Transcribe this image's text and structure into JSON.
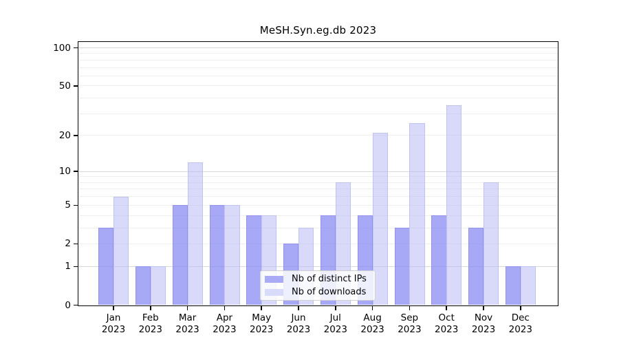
{
  "chart_data": {
    "type": "bar",
    "title": "MeSH.Syn.eg.db 2023",
    "categories": [
      "Jan",
      "Feb",
      "Mar",
      "Apr",
      "May",
      "Jun",
      "Jul",
      "Aug",
      "Sep",
      "Oct",
      "Nov",
      "Dec"
    ],
    "year_label": "2023",
    "series": [
      {
        "name": "Nb of distinct IPs",
        "color": "#a9abf6",
        "fill_rgba": "rgba(133,136,243,0.72)",
        "border_color": "#9092ec",
        "values": [
          3,
          1,
          5,
          5,
          4,
          2,
          4,
          4,
          3,
          4,
          3,
          1
        ]
      },
      {
        "name": "Nb of downloads",
        "color": "#d9dbfa",
        "fill_rgba": "rgba(179,182,245,0.50)",
        "border_color": "#c0c2f1",
        "values": [
          6,
          1,
          12,
          5,
          4,
          3,
          8,
          21,
          25,
          35,
          8,
          1
        ]
      }
    ],
    "yticks": [
      0,
      1,
      2,
      5,
      10,
      20,
      50,
      100
    ],
    "y_scale": "log1p",
    "ylim": [
      0,
      115
    ],
    "grid": "on",
    "grid_minor_color": "#eeeeee",
    "grid_major_color": "#d8d8d8",
    "grid_major_values": [
      1,
      10,
      100
    ],
    "legend_position": "bottom-center",
    "axis_color": "#000000"
  }
}
